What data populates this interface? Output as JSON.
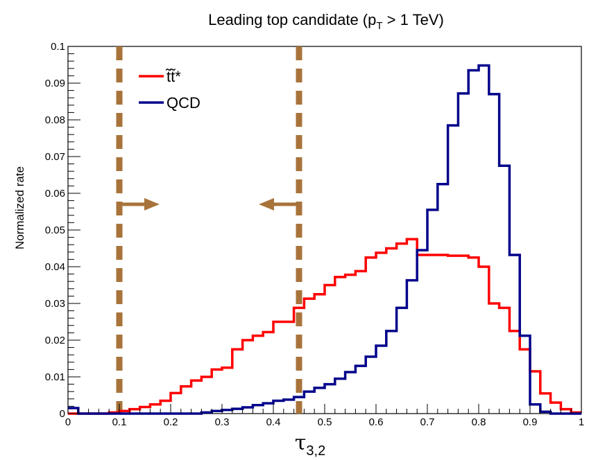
{
  "chart_data": {
    "type": "line",
    "style": "step-histogram",
    "title": "Leading top candidate (p_T > 1 TeV)",
    "title_parts": {
      "pre": "Leading top candidate (p",
      "sub": "T",
      "post": " > 1 TeV)"
    },
    "xlabel": "τ",
    "xlabel_sub": "3,2",
    "ylabel": "Normalized rate",
    "xlim": [
      0,
      1
    ],
    "ylim": [
      0,
      0.1
    ],
    "xticks": [
      "0",
      "0.1",
      "0.2",
      "0.3",
      "0.4",
      "0.5",
      "0.6",
      "0.7",
      "0.8",
      "0.9",
      "1"
    ],
    "yticks": [
      "0",
      "0.01",
      "0.02",
      "0.03",
      "0.04",
      "0.05",
      "0.06",
      "0.07",
      "0.08",
      "0.09",
      "0.1"
    ],
    "legend": {
      "placement": "top-left"
    },
    "bin_edges_start": 0,
    "bin_width": 0.02,
    "series": [
      {
        "name": "t̃t̃*",
        "color": "#ff0000",
        "values": [
          0,
          0,
          0,
          0,
          0.0003,
          0.0007,
          0.0012,
          0.0018,
          0.0025,
          0.0035,
          0.0056,
          0.0074,
          0.009,
          0.01,
          0.012,
          0.0125,
          0.0175,
          0.02,
          0.0212,
          0.0222,
          0.025,
          0.025,
          0.0288,
          0.0313,
          0.0325,
          0.035,
          0.0372,
          0.0378,
          0.0388,
          0.0425,
          0.0438,
          0.045,
          0.0463,
          0.0475,
          0.0432,
          0.0432,
          0.0432,
          0.043,
          0.043,
          0.0425,
          0.04,
          0.03,
          0.0288,
          0.0225,
          0.0175,
          0.0115,
          0.0055,
          0.003,
          0.0012,
          0.0003
        ]
      },
      {
        "name": "QCD",
        "color": "#00008b",
        "values": [
          0.0015,
          0,
          0,
          0,
          0,
          0,
          0,
          0,
          0,
          0,
          0,
          0,
          0,
          0.0003,
          0.0007,
          0.001,
          0.0013,
          0.0017,
          0.0023,
          0.0028,
          0.0035,
          0.0038,
          0.0045,
          0.006,
          0.007,
          0.008,
          0.0095,
          0.0113,
          0.013,
          0.0155,
          0.0185,
          0.0225,
          0.0288,
          0.0363,
          0.0445,
          0.0555,
          0.0625,
          0.0785,
          0.0872,
          0.0935,
          0.0948,
          0.087,
          0.0675,
          0.0432,
          0.0212,
          0.0025,
          0.0005,
          0,
          0,
          0
        ]
      }
    ],
    "annotations": {
      "cut_lines": [
        {
          "x": 0.1,
          "arrow": "right",
          "arrow_y": 0.057,
          "color": "#a8733a"
        },
        {
          "x": 0.45,
          "arrow": "left",
          "arrow_y": 0.057,
          "color": "#a8733a"
        }
      ]
    }
  }
}
